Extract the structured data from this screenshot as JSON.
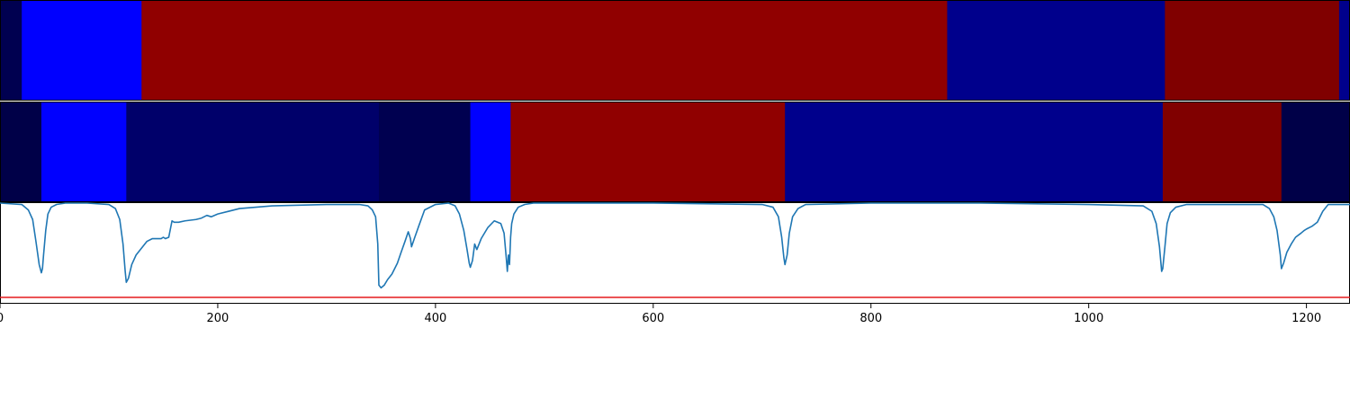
{
  "chart_data": [
    {
      "type": "heatmap",
      "panel": "segment-strip-top",
      "xlim": [
        0,
        1240
      ],
      "segments": [
        {
          "start": 0,
          "end": 20,
          "color": "#000050"
        },
        {
          "start": 20,
          "end": 130,
          "color": "#0000ff"
        },
        {
          "start": 130,
          "end": 870,
          "color": "#900000"
        },
        {
          "start": 870,
          "end": 1070,
          "color": "#00008c"
        },
        {
          "start": 1070,
          "end": 1230,
          "color": "#800000"
        },
        {
          "start": 1230,
          "end": 1240,
          "color": "#00008c"
        }
      ]
    },
    {
      "type": "heatmap",
      "panel": "segment-strip-middle",
      "xlim": [
        0,
        1240
      ],
      "segments": [
        {
          "start": 0,
          "end": 38,
          "color": "#000048"
        },
        {
          "start": 38,
          "end": 116,
          "color": "#0000ff"
        },
        {
          "start": 116,
          "end": 348,
          "color": "#00006a"
        },
        {
          "start": 348,
          "end": 432,
          "color": "#000050"
        },
        {
          "start": 432,
          "end": 469,
          "color": "#0000ff"
        },
        {
          "start": 469,
          "end": 721,
          "color": "#900000"
        },
        {
          "start": 721,
          "end": 1068,
          "color": "#00008c"
        },
        {
          "start": 1068,
          "end": 1177,
          "color": "#800000"
        },
        {
          "start": 1177,
          "end": 1240,
          "color": "#000048"
        }
      ]
    },
    {
      "type": "line",
      "panel": "signal-plot",
      "xlim": [
        0,
        1240
      ],
      "ylim": [
        0,
        1
      ],
      "xticks": [
        0,
        200,
        400,
        600,
        800,
        1000,
        1200
      ],
      "xtick_labels": [
        "0",
        "200",
        "400",
        "600",
        "800",
        "1000",
        "1200"
      ],
      "threshold": {
        "y": 0.31,
        "color": "#e41a1c"
      },
      "series": [
        {
          "color": "#1f77b4",
          "x": [
            0,
            20,
            26,
            30,
            33,
            36,
            38,
            39,
            40,
            42,
            44,
            47,
            52,
            60,
            80,
            100,
            106,
            110,
            113,
            115,
            116,
            118,
            121,
            125,
            130,
            135,
            140,
            148,
            150,
            152,
            155,
            158,
            160,
            164,
            170,
            180,
            185,
            190,
            194,
            200,
            220,
            250,
            300,
            330,
            338,
            342,
            345,
            347,
            348,
            350,
            353,
            356,
            360,
            365,
            368,
            372,
            375,
            377,
            378,
            381,
            385,
            390,
            400,
            412,
            418,
            422,
            426,
            429,
            431,
            432,
            434,
            436,
            438,
            442,
            448,
            454,
            460,
            463,
            465,
            466,
            467,
            468,
            469,
            470,
            472,
            476,
            482,
            490,
            500,
            600,
            700,
            710,
            715,
            718,
            720,
            721,
            723,
            725,
            728,
            733,
            740,
            800,
            900,
            1000,
            1050,
            1058,
            1062,
            1065,
            1067,
            1068,
            1070,
            1072,
            1075,
            1080,
            1090,
            1160,
            1166,
            1170,
            1173,
            1176,
            1177,
            1179,
            1182,
            1186,
            1190,
            1195,
            1198,
            1200,
            1205,
            1210,
            1215,
            1220,
            1240
          ],
          "y": [
            1.0,
            0.99,
            0.95,
            0.88,
            0.72,
            0.55,
            0.49,
            0.52,
            0.62,
            0.8,
            0.92,
            0.97,
            0.99,
            1.0,
            1.0,
            0.99,
            0.96,
            0.88,
            0.7,
            0.5,
            0.42,
            0.45,
            0.55,
            0.62,
            0.67,
            0.72,
            0.74,
            0.74,
            0.75,
            0.74,
            0.75,
            0.87,
            0.86,
            0.86,
            0.87,
            0.88,
            0.89,
            0.91,
            0.9,
            0.92,
            0.96,
            0.98,
            0.99,
            0.99,
            0.98,
            0.95,
            0.9,
            0.7,
            0.4,
            0.38,
            0.4,
            0.44,
            0.48,
            0.56,
            0.63,
            0.72,
            0.79,
            0.74,
            0.68,
            0.75,
            0.84,
            0.95,
            0.99,
            1.0,
            0.98,
            0.92,
            0.8,
            0.66,
            0.56,
            0.53,
            0.58,
            0.7,
            0.66,
            0.74,
            0.82,
            0.87,
            0.85,
            0.78,
            0.6,
            0.5,
            0.62,
            0.55,
            0.75,
            0.85,
            0.92,
            0.97,
            0.99,
            1.0,
            1.0,
            1.0,
            0.99,
            0.97,
            0.9,
            0.75,
            0.6,
            0.55,
            0.62,
            0.78,
            0.9,
            0.96,
            0.99,
            1.0,
            1.0,
            0.99,
            0.98,
            0.94,
            0.85,
            0.68,
            0.5,
            0.52,
            0.68,
            0.85,
            0.93,
            0.97,
            0.99,
            0.99,
            0.96,
            0.9,
            0.8,
            0.62,
            0.52,
            0.56,
            0.64,
            0.7,
            0.75,
            0.78,
            0.8,
            0.81,
            0.83,
            0.86,
            0.94,
            0.99,
            0.99
          ]
        }
      ]
    }
  ]
}
